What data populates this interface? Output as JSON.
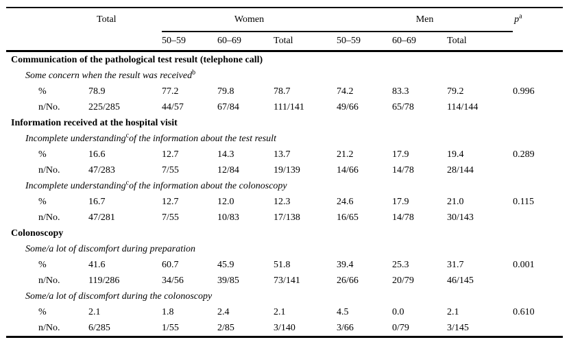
{
  "page": {
    "background_color": "#ffffff",
    "text_color": "#000000",
    "rule_color": "#000000"
  },
  "table": {
    "header": {
      "total": "Total",
      "women": "Women",
      "men": "Men",
      "p_base": "p",
      "p_sup": "a",
      "age_groups": [
        "50–59",
        "60–69",
        "Total",
        "50–59",
        "60–69",
        "Total"
      ]
    },
    "row_labels": {
      "percent": "%",
      "n": "n/No."
    },
    "sections": [
      {
        "title": "Communication of the pathological test result (telephone call)",
        "items": [
          {
            "label_pre": "Some concern when the result was received",
            "label_sup": "b",
            "label_post": "",
            "percent": [
              "78.9",
              "77.2",
              "79.8",
              "78.7",
              "74.2",
              "83.3",
              "79.2"
            ],
            "p_value": "0.996",
            "n_no": [
              "225/285",
              "44/57",
              "67/84",
              "111/141",
              "49/66",
              "65/78",
              "114/144"
            ]
          }
        ]
      },
      {
        "title": "Information received at the hospital visit",
        "items": [
          {
            "label_pre": "Incomplete understanding",
            "label_sup": "c",
            "label_post": "of the information about the test result",
            "percent": [
              "16.6",
              "12.7",
              "14.3",
              "13.7",
              "21.2",
              "17.9",
              "19.4"
            ],
            "p_value": "0.289",
            "n_no": [
              "47/283",
              "7/55",
              "12/84",
              "19/139",
              "14/66",
              "14/78",
              "28/144"
            ]
          },
          {
            "label_pre": "Incomplete understanding",
            "label_sup": "c",
            "label_post": "of the information about the colonoscopy",
            "percent": [
              "16.7",
              "12.7",
              "12.0",
              "12.3",
              "24.6",
              "17.9",
              "21.0"
            ],
            "p_value": "0.115",
            "n_no": [
              "47/281",
              "7/55",
              "10/83",
              "17/138",
              "16/65",
              "14/78",
              "30/143"
            ]
          }
        ]
      },
      {
        "title": "Colonoscopy",
        "items": [
          {
            "label_pre": "Some/a lot of discomfort during preparation",
            "label_sup": "",
            "label_post": "",
            "percent": [
              "41.6",
              "60.7",
              "45.9",
              "51.8",
              "39.4",
              "25.3",
              "31.7"
            ],
            "p_value": "0.001",
            "n_no": [
              "119/286",
              "34/56",
              "39/85",
              "73/141",
              "26/66",
              "20/79",
              "46/145"
            ]
          },
          {
            "label_pre": "Some/a lot of discomfort during the colonoscopy",
            "label_sup": "",
            "label_post": "",
            "percent": [
              "2.1",
              "1.8",
              "2.4",
              "2.1",
              "4.5",
              "0.0",
              "2.1"
            ],
            "p_value": "0.610",
            "n_no": [
              "6/285",
              "1/55",
              "2/85",
              "3/140",
              "3/66",
              "0/79",
              "3/145"
            ]
          }
        ]
      }
    ]
  }
}
